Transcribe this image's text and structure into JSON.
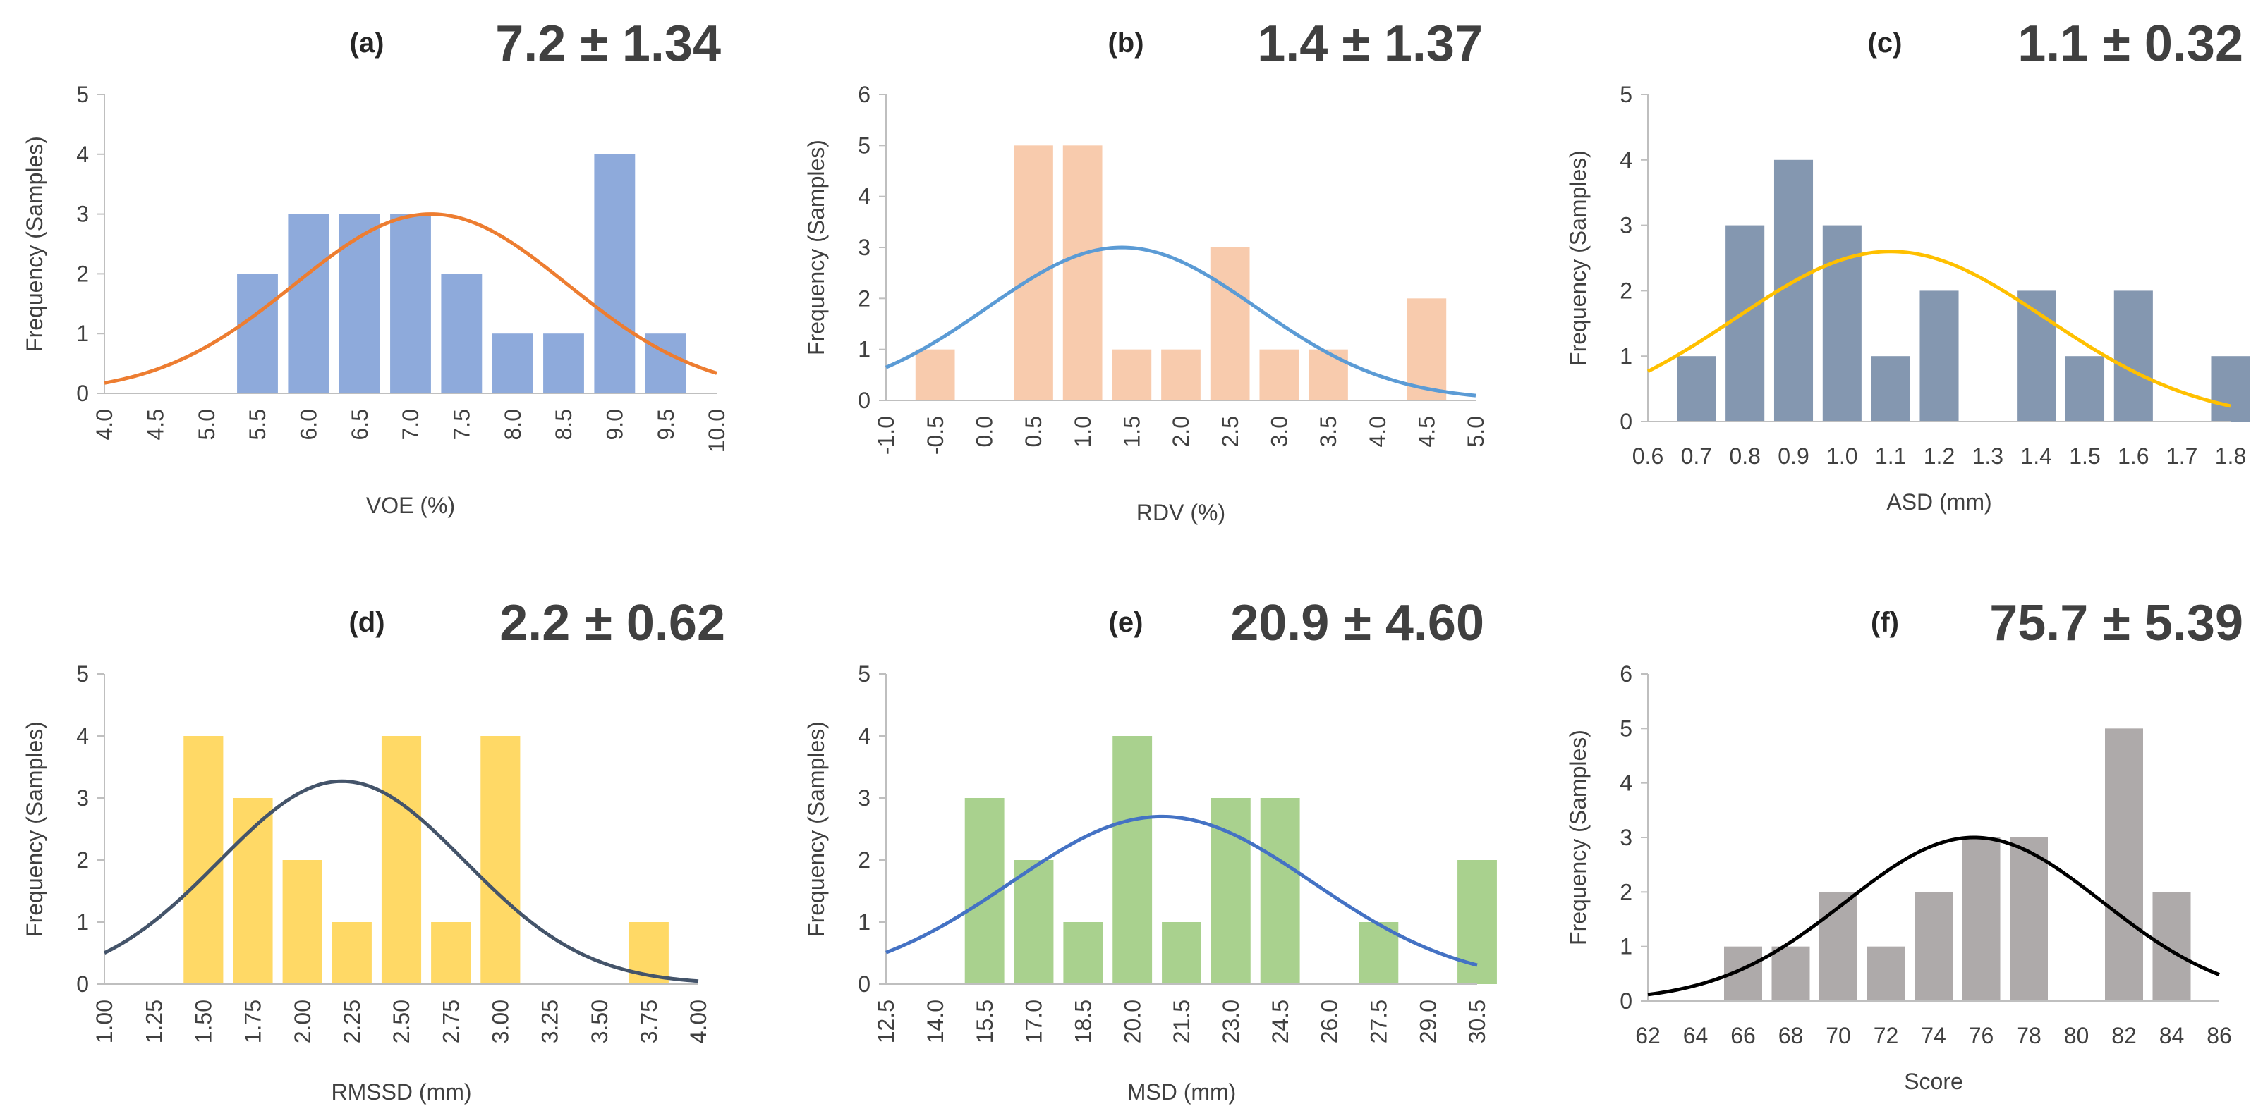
{
  "chart_data": [
    {
      "type": "bar",
      "panel_label": "(a)",
      "stat": "7.2 ± 1.34",
      "xlabel": "VOE (%)",
      "ylabel": "Frequency (Samples)",
      "ylim": [
        0,
        5
      ],
      "yticks": [
        "0",
        "1",
        "2",
        "3",
        "4",
        "5"
      ],
      "xlim": [
        4.0,
        10.0
      ],
      "xticks": [
        "4.0",
        "4.5",
        "5.0",
        "5.5",
        "6.0",
        "6.5",
        "7.0",
        "7.5",
        "8.0",
        "8.5",
        "9.0",
        "9.5",
        "10.0"
      ],
      "rotate_xticks": true,
      "bin_width": 0.5,
      "bars": [
        {
          "x": 5.5,
          "value": 2
        },
        {
          "x": 6.0,
          "value": 3
        },
        {
          "x": 6.5,
          "value": 3
        },
        {
          "x": 7.0,
          "value": 3
        },
        {
          "x": 7.5,
          "value": 2
        },
        {
          "x": 8.0,
          "value": 1
        },
        {
          "x": 8.5,
          "value": 1
        },
        {
          "x": 9.0,
          "value": 4
        },
        {
          "x": 9.5,
          "value": 1
        }
      ],
      "fit_curve": {
        "type": "normal",
        "mean": 7.2,
        "sd": 1.34,
        "peak": 3.0
      },
      "colors": {
        "bar": "#8eaadb",
        "curve": "#ed7d31"
      }
    },
    {
      "type": "bar",
      "panel_label": "(b)",
      "stat": "1.4 ± 1.37",
      "xlabel": "RDV (%)",
      "ylabel": "Frequency (Samples)",
      "ylim": [
        0,
        6
      ],
      "yticks": [
        "0",
        "1",
        "2",
        "3",
        "4",
        "5",
        "6"
      ],
      "xlim": [
        -1.0,
        5.0
      ],
      "xticks": [
        "-1.0",
        "-0.5",
        "0.0",
        "0.5",
        "1.0",
        "1.5",
        "2.0",
        "2.5",
        "3.0",
        "3.5",
        "4.0",
        "4.5",
        "5.0"
      ],
      "rotate_xticks": true,
      "bin_width": 0.5,
      "bars": [
        {
          "x": -0.5,
          "value": 1
        },
        {
          "x": 0.5,
          "value": 5
        },
        {
          "x": 1.0,
          "value": 5
        },
        {
          "x": 1.5,
          "value": 1
        },
        {
          "x": 2.0,
          "value": 1
        },
        {
          "x": 2.5,
          "value": 3
        },
        {
          "x": 3.0,
          "value": 1
        },
        {
          "x": 3.5,
          "value": 1
        },
        {
          "x": 4.5,
          "value": 2
        }
      ],
      "fit_curve": {
        "type": "normal",
        "mean": 1.4,
        "sd": 1.37,
        "peak": 3.0
      },
      "colors": {
        "bar": "#f8cbad",
        "curve": "#5b9bd5"
      }
    },
    {
      "type": "bar",
      "panel_label": "(c)",
      "stat": "1.1 ± 0.32",
      "xlabel": "ASD (mm)",
      "ylabel": "Frequency (Samples)",
      "ylim": [
        0,
        5
      ],
      "yticks": [
        "0",
        "1",
        "2",
        "3",
        "4",
        "5"
      ],
      "xlim": [
        0.6,
        1.8
      ],
      "xticks": [
        "0.6",
        "0.7",
        "0.8",
        "0.9",
        "1.0",
        "1.1",
        "1.2",
        "1.3",
        "1.4",
        "1.5",
        "1.6",
        "1.7",
        "1.8"
      ],
      "rotate_xticks": false,
      "bin_width": 0.1,
      "bars": [
        {
          "x": 0.7,
          "value": 1
        },
        {
          "x": 0.8,
          "value": 3
        },
        {
          "x": 0.9,
          "value": 4
        },
        {
          "x": 1.0,
          "value": 3
        },
        {
          "x": 1.1,
          "value": 1
        },
        {
          "x": 1.2,
          "value": 2
        },
        {
          "x": 1.4,
          "value": 2
        },
        {
          "x": 1.5,
          "value": 1
        },
        {
          "x": 1.6,
          "value": 2
        },
        {
          "x": 1.8,
          "value": 1
        }
      ],
      "fit_curve": {
        "type": "normal",
        "mean": 1.1,
        "sd": 0.32,
        "peak": 2.6
      },
      "colors": {
        "bar": "#8497b0",
        "curve": "#ffc000"
      }
    },
    {
      "type": "bar",
      "panel_label": "(d)",
      "stat": "2.2 ± 0.62",
      "xlabel": "RMSSD (mm)",
      "ylabel": "Frequency (Samples)",
      "ylim": [
        0,
        5
      ],
      "yticks": [
        "0",
        "1",
        "2",
        "3",
        "4",
        "5"
      ],
      "xlim": [
        1.0,
        4.0
      ],
      "xticks": [
        "1.00",
        "1.25",
        "1.50",
        "1.75",
        "2.00",
        "2.25",
        "2.50",
        "2.75",
        "3.00",
        "3.25",
        "3.50",
        "3.75",
        "4.00"
      ],
      "rotate_xticks": true,
      "bin_width": 0.25,
      "bars": [
        {
          "x": 1.5,
          "value": 4
        },
        {
          "x": 1.75,
          "value": 3
        },
        {
          "x": 2.0,
          "value": 2
        },
        {
          "x": 2.25,
          "value": 1
        },
        {
          "x": 2.5,
          "value": 4
        },
        {
          "x": 2.75,
          "value": 1
        },
        {
          "x": 3.0,
          "value": 4
        },
        {
          "x": 3.75,
          "value": 1
        }
      ],
      "fit_curve": {
        "type": "normal",
        "mean": 2.2,
        "sd": 0.62,
        "peak": 3.27
      },
      "colors": {
        "bar": "#ffd966",
        "curve": "#44546a"
      }
    },
    {
      "type": "bar",
      "panel_label": "(e)",
      "stat": "20.9 ± 4.60",
      "xlabel": "MSD (mm)",
      "ylabel": "Frequency (Samples)",
      "ylim": [
        0,
        5
      ],
      "yticks": [
        "0",
        "1",
        "2",
        "3",
        "4",
        "5"
      ],
      "xlim": [
        12.5,
        30.5
      ],
      "xticks": [
        "12.5",
        "14.0",
        "15.5",
        "17.0",
        "18.5",
        "20.0",
        "21.5",
        "23.0",
        "24.5",
        "26.0",
        "27.5",
        "29.0",
        "30.5"
      ],
      "rotate_xticks": true,
      "bin_width": 1.5,
      "bars": [
        {
          "x": 15.5,
          "value": 3
        },
        {
          "x": 17.0,
          "value": 2
        },
        {
          "x": 18.5,
          "value": 1
        },
        {
          "x": 20.0,
          "value": 4
        },
        {
          "x": 21.5,
          "value": 1
        },
        {
          "x": 23.0,
          "value": 3
        },
        {
          "x": 24.5,
          "value": 3
        },
        {
          "x": 27.5,
          "value": 1
        },
        {
          "x": 30.5,
          "value": 2
        }
      ],
      "fit_curve": {
        "type": "normal",
        "mean": 20.9,
        "sd": 4.6,
        "peak": 2.7
      },
      "colors": {
        "bar": "#a9d18e",
        "curve": "#4472c4"
      }
    },
    {
      "type": "bar",
      "panel_label": "(f)",
      "stat": "75.7 ± 5.39",
      "xlabel": "Score",
      "ylabel": "Frequency (Samples)",
      "ylim": [
        0,
        6
      ],
      "yticks": [
        "0",
        "1",
        "2",
        "3",
        "4",
        "5",
        "6"
      ],
      "xlim": [
        62,
        86
      ],
      "xticks": [
        "62",
        "64",
        "66",
        "68",
        "70",
        "72",
        "74",
        "76",
        "78",
        "80",
        "82",
        "84",
        "86"
      ],
      "rotate_xticks": false,
      "bin_width": 2,
      "bars": [
        {
          "x": 66,
          "value": 1
        },
        {
          "x": 68,
          "value": 1
        },
        {
          "x": 70,
          "value": 2
        },
        {
          "x": 72,
          "value": 1
        },
        {
          "x": 74,
          "value": 2
        },
        {
          "x": 76,
          "value": 3
        },
        {
          "x": 78,
          "value": 3
        },
        {
          "x": 82,
          "value": 5
        },
        {
          "x": 84,
          "value": 2
        }
      ],
      "fit_curve": {
        "type": "normal",
        "mean": 75.7,
        "sd": 5.39,
        "peak": 3.0
      },
      "colors": {
        "bar": "#aeaaaa",
        "curve": "#000000"
      }
    }
  ]
}
